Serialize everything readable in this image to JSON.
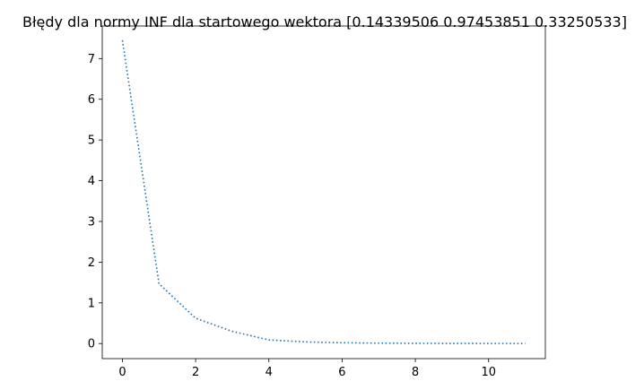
{
  "chart_data": {
    "type": "line",
    "title": "Błędy dla normy INF dla startowego wektora [0.14339506 0.97453851 0.33250533]",
    "xlabel": "",
    "ylabel": "",
    "xlim": [
      -0.55,
      11.55
    ],
    "ylim": [
      -0.37,
      7.8
    ],
    "x_ticks": [
      0,
      2,
      4,
      6,
      8,
      10
    ],
    "y_ticks": [
      0,
      1,
      2,
      3,
      4,
      5,
      6,
      7
    ],
    "grid": false,
    "legend": "none",
    "line_style": "dotted",
    "series": [
      {
        "color": "#1f77b4",
        "x": [
          0,
          1,
          2,
          3,
          4,
          5,
          6,
          7,
          8,
          9,
          10,
          11
        ],
        "y": [
          7.45,
          1.47,
          0.62,
          0.3,
          0.09,
          0.04,
          0.02,
          0.01,
          0.005,
          0.003,
          0.002,
          0.001
        ]
      }
    ]
  }
}
